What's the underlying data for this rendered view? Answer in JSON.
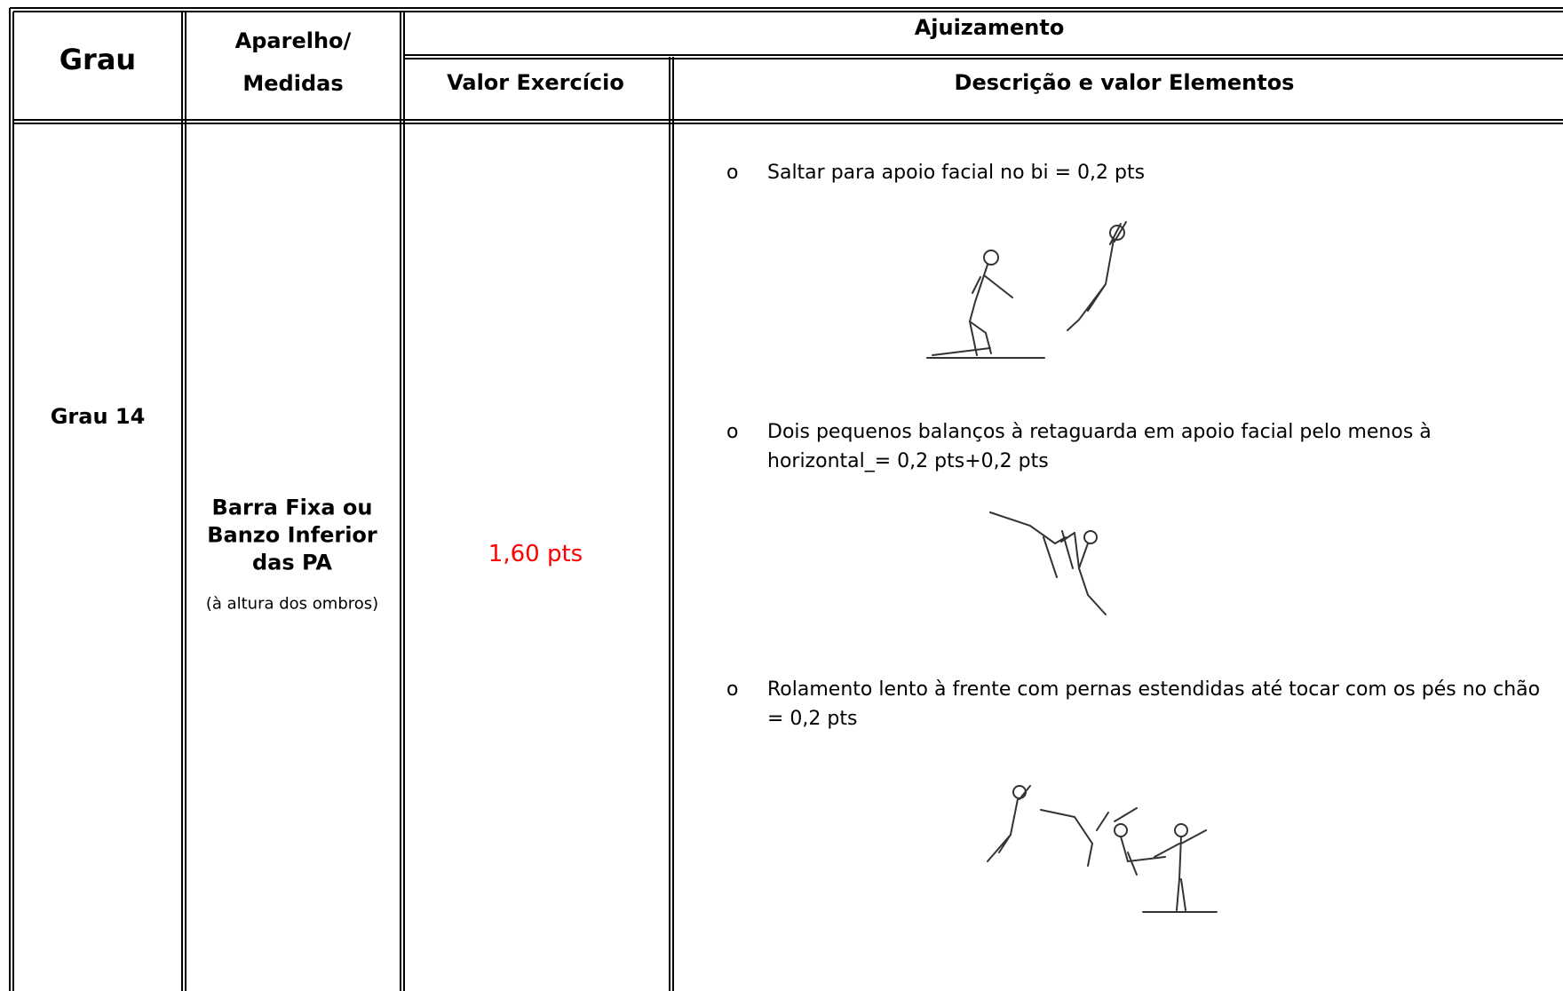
{
  "header": {
    "grau": "Grau",
    "aparelho": "Aparelho/ Medidas",
    "ajuizamento": "Ajuizamento",
    "valor_exercicio": "Valor Exercício",
    "descricao": "Descrição e valor Elementos"
  },
  "row": {
    "grau": "Grau 14",
    "aparelho": "Barra Fixa ou Banzo Inferior das PA",
    "aparelho_note": "(à altura dos ombros)",
    "valor": "1,60 pts",
    "elements": [
      {
        "bullet": "o",
        "text": "Saltar para apoio facial no bi = 0,2 pts"
      },
      {
        "bullet": "o",
        "text": "Dois pequenos balanços à retaguarda em apoio facial pelo menos à horizontal_= 0,2 pts+0,2 pts"
      },
      {
        "bullet": "o",
        "text": "Rolamento lento à frente com pernas estendidas até tocar com os pés no chão = 0,2 pts"
      }
    ]
  }
}
